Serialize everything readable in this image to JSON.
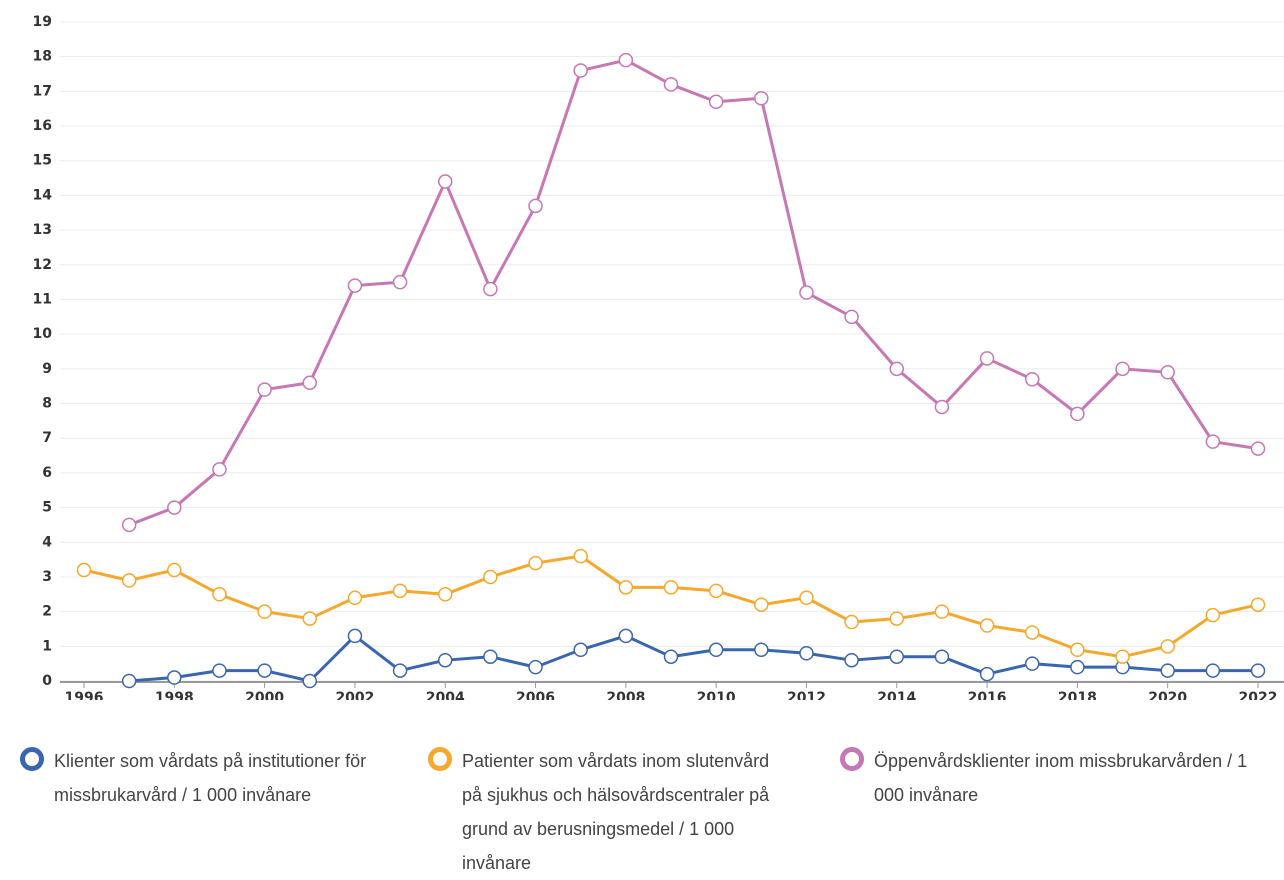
{
  "chart_data": {
    "type": "line",
    "x": [
      1996,
      1997,
      1998,
      1999,
      2000,
      2001,
      2002,
      2003,
      2004,
      2005,
      2006,
      2007,
      2008,
      2009,
      2010,
      2011,
      2012,
      2013,
      2014,
      2015,
      2016,
      2017,
      2018,
      2019,
      2020,
      2021,
      2022
    ],
    "series": [
      {
        "name": "Klienter som vårdats på institutioner för missbrukarvård / 1 000 invånare",
        "color": "#3a66b0",
        "values": [
          null,
          0,
          0.1,
          0.3,
          0.3,
          0,
          1.3,
          0.3,
          0.6,
          0.7,
          0.4,
          0.9,
          1.3,
          0.7,
          0.9,
          0.9,
          0.8,
          0.6,
          0.7,
          0.7,
          0.2,
          0.5,
          0.4,
          0.4,
          0.3,
          0.3,
          0.3
        ]
      },
      {
        "name": "Patienter som vårdats inom slutenvård på sjukhus och hälsovårdscentraler på grund av berusningsmedel / 1 000 invånare",
        "color": "#f5a82c",
        "values": [
          3.2,
          2.9,
          3.2,
          2.5,
          2.0,
          1.8,
          2.4,
          2.6,
          2.5,
          3.0,
          3.4,
          3.6,
          2.7,
          2.7,
          2.6,
          2.2,
          2.4,
          1.7,
          1.8,
          2.0,
          1.6,
          1.4,
          0.9,
          0.7,
          1.0,
          1.9,
          2.2
        ]
      },
      {
        "name": "Öppenvårdsklienter inom missbrukarvården / 1 000 invånare",
        "color": "#c677b4",
        "values": [
          null,
          4.5,
          5.0,
          6.1,
          8.4,
          8.6,
          11.4,
          11.5,
          14.4,
          11.3,
          13.7,
          17.6,
          17.9,
          17.2,
          16.7,
          16.8,
          11.2,
          10.5,
          9.0,
          7.9,
          9.3,
          8.7,
          7.7,
          9.0,
          8.9,
          6.9,
          6.7
        ]
      }
    ],
    "xlim": [
      1996,
      2022
    ],
    "xticks": [
      1996,
      1998,
      2000,
      2002,
      2004,
      2006,
      2008,
      2010,
      2012,
      2014,
      2016,
      2018,
      2020,
      2022
    ],
    "ylim": [
      0,
      19
    ],
    "yticks": [
      0,
      1,
      2,
      3,
      4,
      5,
      6,
      7,
      8,
      9,
      10,
      11,
      12,
      13,
      14,
      15,
      16,
      17,
      18,
      19
    ],
    "grid": true
  }
}
